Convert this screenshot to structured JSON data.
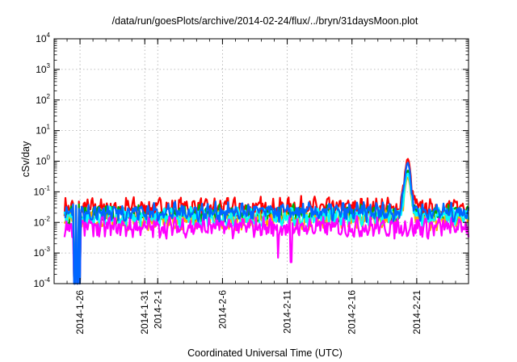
{
  "chart_data": {
    "type": "line",
    "title": "/data/run/goesPlots/archive/2014-02-24/flux/../bryn/31daysMoon.plot",
    "xlabel": "Coordinated Universal Time (UTC)",
    "ylabel": "cSv/day",
    "y_scale": "log",
    "ylim": [
      0.0001,
      10000
    ],
    "y_ticks": [
      {
        "base": "10",
        "exp": "-4"
      },
      {
        "base": "10",
        "exp": "-3"
      },
      {
        "base": "10",
        "exp": "-2"
      },
      {
        "base": "10",
        "exp": "-1"
      },
      {
        "base": "10",
        "exp": "0"
      },
      {
        "base": "10",
        "exp": "1"
      },
      {
        "base": "10",
        "exp": "2"
      },
      {
        "base": "10",
        "exp": "3"
      },
      {
        "base": "10",
        "exp": "4"
      }
    ],
    "x_range": [
      "2014-01-24",
      "2014-02-25"
    ],
    "x_ticks": [
      "2014-1-26",
      "2014-1-31",
      "2014-2-1",
      "2014-2-6",
      "2014-2-11",
      "2014-2-16",
      "2014-2-21"
    ],
    "x_tick_dates": [
      "2014-01-26",
      "2014-01-31",
      "2014-02-01",
      "2014-02-06",
      "2014-02-11",
      "2014-02-16",
      "2014-02-21"
    ],
    "grid": true,
    "legend": "none",
    "series": [
      {
        "color": "#ff0000",
        "level": 0.03,
        "spread": 0.3,
        "events": [
          {
            "date": "2014-02-20",
            "peak": 1.2
          }
        ]
      },
      {
        "color": "#00aa00",
        "level": 0.018,
        "spread": 0.25,
        "events": [
          {
            "date": "2014-02-20",
            "peak": 0.5
          }
        ]
      },
      {
        "color": "#ffaa00",
        "level": 0.012,
        "spread": 0.25,
        "events": [
          {
            "date": "2014-02-20",
            "peak": 0.3
          }
        ]
      },
      {
        "color": "#00ffff",
        "level": 0.015,
        "spread": 0.25,
        "events": [
          {
            "date": "2014-02-20",
            "peak": 0.4
          }
        ]
      },
      {
        "color": "#ff00ff",
        "level": 0.007,
        "spread": 0.3,
        "events": [
          {
            "date": "2014-02-10",
            "peak": 0.0007
          },
          {
            "date": "2014-02-11",
            "peak": 0.0005
          }
        ]
      },
      {
        "color": "#0066ff",
        "level": 0.022,
        "spread": 0.25,
        "events": [
          {
            "date": "2014-02-20",
            "peak": 0.9
          }
        ]
      }
    ],
    "dropouts": [
      {
        "start": "2014-01-25",
        "end": "2014-01-26",
        "value": 0.0001
      }
    ]
  }
}
